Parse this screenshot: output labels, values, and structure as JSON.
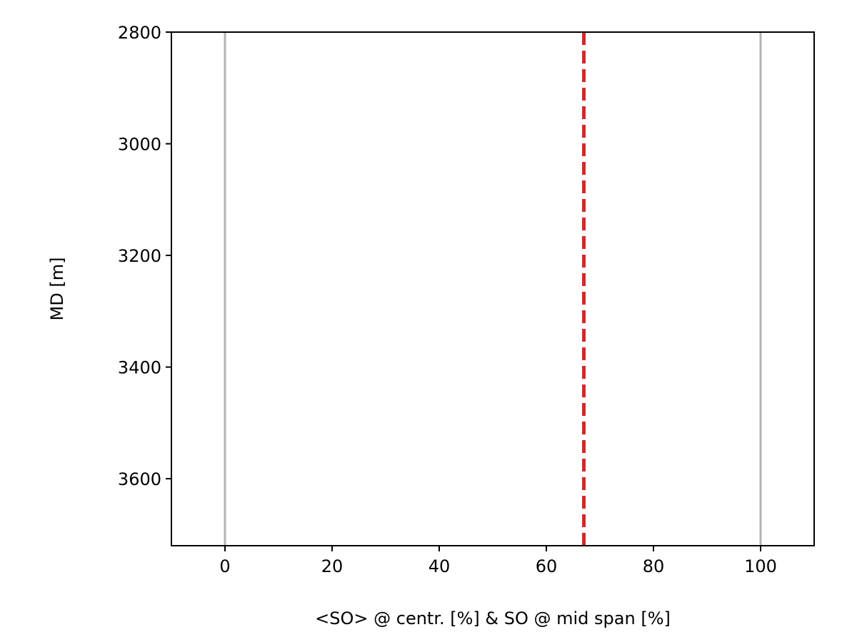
{
  "chart_data": {
    "type": "line",
    "title": "",
    "xlabel": "<SO> @ centr. [%]  &  SO @ mid span [%]",
    "ylabel": "MD [m]",
    "xlim": [
      -10,
      110
    ],
    "ylim": [
      3720,
      2800
    ],
    "y_inverted": true,
    "grid": false,
    "x_ticks": [
      0,
      20,
      40,
      60,
      80,
      100
    ],
    "x_tick_labels": [
      "0",
      "20",
      "40",
      "60",
      "80",
      "100"
    ],
    "y_ticks": [
      2800,
      3000,
      3200,
      3400,
      3600
    ],
    "y_tick_labels": [
      "2800",
      "3000",
      "3200",
      "3400",
      "3600"
    ],
    "reference_lines": [
      {
        "x": 0,
        "style": "solid",
        "color": "#b3b3b3"
      },
      {
        "x": 100,
        "style": "solid",
        "color": "#b3b3b3"
      }
    ],
    "series": [
      {
        "x": [
          67,
          67
        ],
        "y": [
          2800,
          3720
        ],
        "style": "dashed",
        "color": "#d62728"
      }
    ]
  }
}
